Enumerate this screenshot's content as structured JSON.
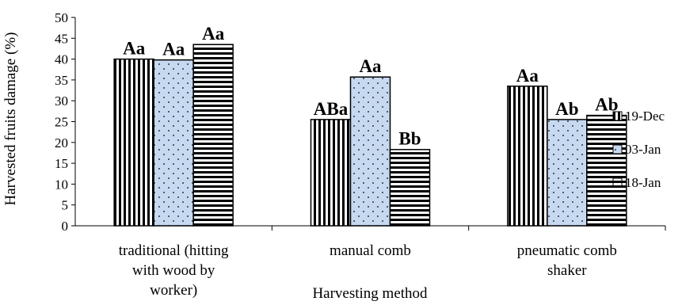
{
  "chart_data": {
    "type": "bar",
    "title": "",
    "xlabel": "Harvesting method",
    "ylabel": "Harvested fruits damage (%)",
    "ylim": [
      0,
      50
    ],
    "ytick_step": 5,
    "grid": false,
    "legend_position": "right",
    "categories": [
      [
        "traditional (hitting",
        "with wood by",
        "worker)"
      ],
      [
        "manual comb"
      ],
      [
        "pneumatic comb",
        "shaker"
      ]
    ],
    "series": [
      {
        "name": "19-Dec",
        "pattern": "vertical-stripes",
        "values": [
          40,
          25.5,
          33.5
        ],
        "labels": [
          "Aa",
          "ABa",
          "Aa"
        ]
      },
      {
        "name": "03-Jan",
        "pattern": "dots",
        "values": [
          39.8,
          35.7,
          25.5
        ],
        "labels": [
          "Aa",
          "Aa",
          "Ab"
        ]
      },
      {
        "name": "18-Jan",
        "pattern": "horizontal-stripes",
        "values": [
          43.5,
          18.3,
          26.5
        ],
        "labels": [
          "Aa",
          "Bb",
          "Ab"
        ]
      }
    ]
  },
  "colors": {
    "bar_stroke": "#000000",
    "dots_fill": "#c6d9f1",
    "background": "#ffffff"
  }
}
